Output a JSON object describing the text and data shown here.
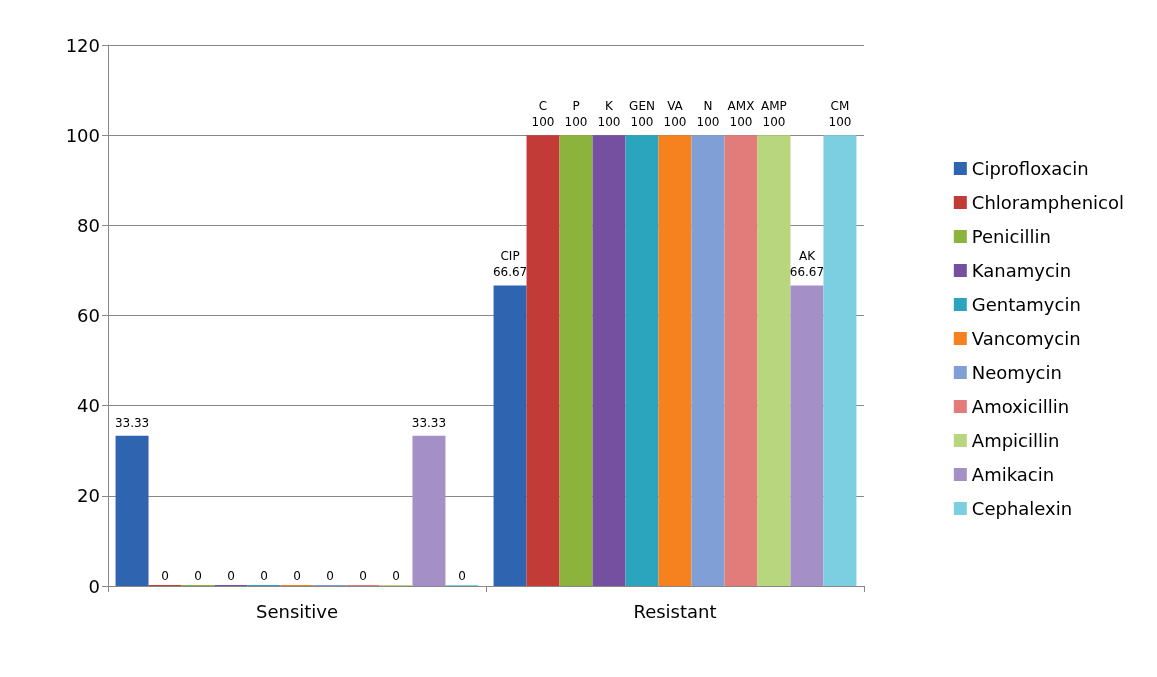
{
  "chart_data": {
    "type": "bar",
    "categories": [
      "Sensitive",
      "Resistant"
    ],
    "ylim": [
      0,
      120
    ],
    "yticks": [
      0,
      20,
      40,
      60,
      80,
      100,
      120
    ],
    "grid": "y",
    "legend": "right",
    "series": [
      {
        "name": "Ciprofloxacin",
        "color": "#2f64b0",
        "values": [
          33.33,
          66.67
        ],
        "value_labels": [
          "33.33",
          "CIP\n66.67"
        ]
      },
      {
        "name": "Chloramphenicol",
        "color": "#c23b36",
        "values": [
          0,
          100
        ],
        "value_labels": [
          "0",
          "C\n100"
        ]
      },
      {
        "name": "Penicillin",
        "color": "#8cb43c",
        "values": [
          0,
          100
        ],
        "value_labels": [
          "0",
          "P\n100"
        ]
      },
      {
        "name": "Kanamycin",
        "color": "#7650a0",
        "values": [
          0,
          100
        ],
        "value_labels": [
          "0",
          "K\n100"
        ]
      },
      {
        "name": "Gentamycin",
        "color": "#2ba4be",
        "values": [
          0,
          100
        ],
        "value_labels": [
          "0",
          "GEN\n100"
        ]
      },
      {
        "name": "Vancomycin",
        "color": "#f5821f",
        "values": [
          0,
          100
        ],
        "value_labels": [
          "0",
          "VA\n100"
        ]
      },
      {
        "name": "Neomycin",
        "color": "#809fd6",
        "values": [
          0,
          100
        ],
        "value_labels": [
          "0",
          "N\n100"
        ]
      },
      {
        "name": "Amoxicillin",
        "color": "#e17c7b",
        "values": [
          0,
          100
        ],
        "value_labels": [
          "0",
          "AMX\n100"
        ]
      },
      {
        "name": "Ampicillin",
        "color": "#b7d67d",
        "values": [
          0,
          100
        ],
        "value_labels": [
          "0",
          "AMP\n100"
        ]
      },
      {
        "name": "Amikacin",
        "color": "#a48fc7",
        "values": [
          33.33,
          66.67
        ],
        "value_labels": [
          "33.33",
          "AK\n66.67"
        ]
      },
      {
        "name": "Cephalexin",
        "color": "#7ccfe0",
        "values": [
          0,
          100
        ],
        "value_labels": [
          "0",
          "CM\n100"
        ]
      }
    ]
  }
}
